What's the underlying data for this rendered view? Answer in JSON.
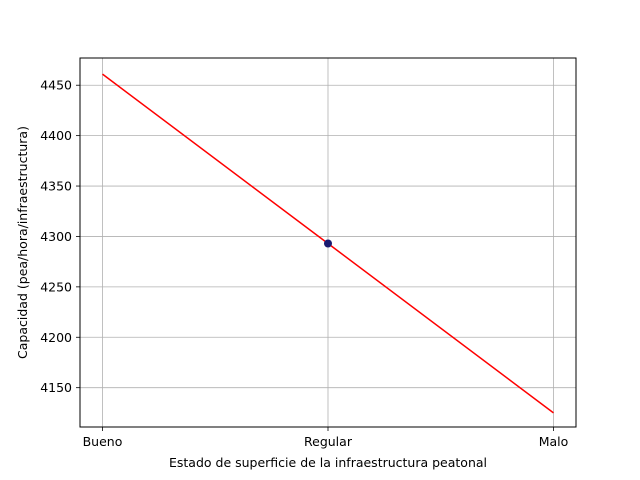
{
  "chart_data": {
    "type": "line",
    "title": "",
    "xlabel": "Estado de superficie de la infraestructura peatonal",
    "ylabel": "Capacidad (pea/hora/infraestructura)",
    "categories": [
      "Bueno",
      "Regular",
      "Malo"
    ],
    "series": [
      {
        "values": [
          4461,
          4293,
          4125
        ],
        "color": "#ff0000"
      }
    ],
    "points": [
      {
        "x": "Regular",
        "y": 4293,
        "color": "#191970"
      }
    ],
    "ylim": [
      4111,
      4477
    ],
    "yticks": [
      4150,
      4200,
      4250,
      4300,
      4350,
      4400,
      4450
    ],
    "grid": true
  }
}
